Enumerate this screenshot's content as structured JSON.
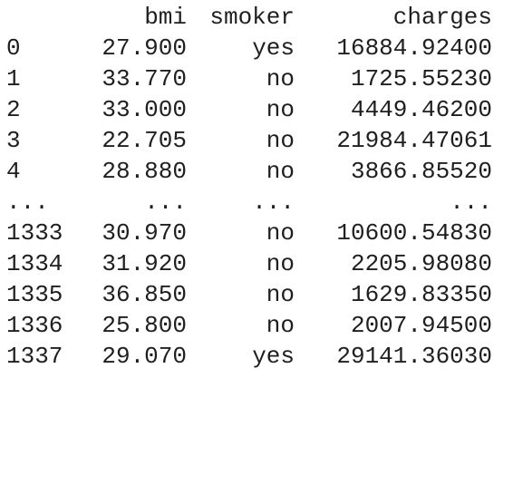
{
  "table": {
    "columns": {
      "index": "",
      "bmi": "bmi",
      "smoker": "smoker",
      "charges": "charges"
    },
    "rows": [
      {
        "index": "0",
        "bmi": "27.900",
        "smoker": "yes",
        "charges": "16884.92400"
      },
      {
        "index": "1",
        "bmi": "33.770",
        "smoker": "no",
        "charges": "1725.55230"
      },
      {
        "index": "2",
        "bmi": "33.000",
        "smoker": "no",
        "charges": "4449.46200"
      },
      {
        "index": "3",
        "bmi": "22.705",
        "smoker": "no",
        "charges": "21984.47061"
      },
      {
        "index": "4",
        "bmi": "28.880",
        "smoker": "no",
        "charges": "3866.85520"
      },
      {
        "index": "...",
        "bmi": "...",
        "smoker": "...",
        "charges": "..."
      },
      {
        "index": "1333",
        "bmi": "30.970",
        "smoker": "no",
        "charges": "10600.54830"
      },
      {
        "index": "1334",
        "bmi": "31.920",
        "smoker": "no",
        "charges": "2205.98080"
      },
      {
        "index": "1335",
        "bmi": "36.850",
        "smoker": "no",
        "charges": "1629.83350"
      },
      {
        "index": "1336",
        "bmi": "25.800",
        "smoker": "no",
        "charges": "2007.94500"
      },
      {
        "index": "1337",
        "bmi": "29.070",
        "smoker": "yes",
        "charges": "29141.36030"
      }
    ]
  }
}
